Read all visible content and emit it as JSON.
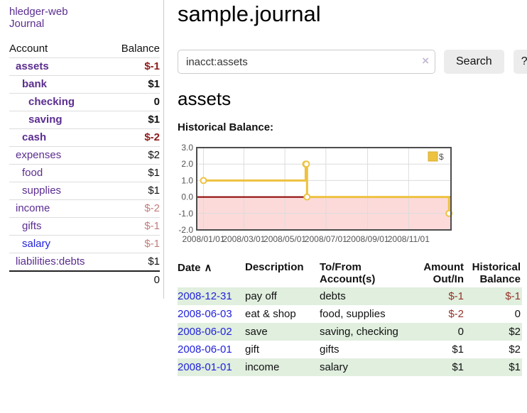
{
  "sidebar": {
    "app_title": "hledger-web",
    "journal_link": "Journal",
    "accounts_table": {
      "headers": {
        "account": "Account",
        "balance": "Balance"
      },
      "rows": [
        {
          "name": "assets",
          "depth": 1,
          "bold": true,
          "balance": "$-1",
          "neg": "strong"
        },
        {
          "name": "bank",
          "depth": 2,
          "bold": true,
          "balance": "$1",
          "neg": "none"
        },
        {
          "name": "checking",
          "depth": 3,
          "bold": true,
          "balance": "0",
          "neg": "none"
        },
        {
          "name": "saving",
          "depth": 3,
          "bold": true,
          "balance": "$1",
          "neg": "none"
        },
        {
          "name": "cash",
          "depth": 2,
          "bold": true,
          "balance": "$-2",
          "neg": "strong"
        },
        {
          "name": "expenses",
          "depth": 1,
          "bold": false,
          "balance": "$2",
          "neg": "none"
        },
        {
          "name": "food",
          "depth": 2,
          "bold": false,
          "balance": "$1",
          "neg": "none"
        },
        {
          "name": "supplies",
          "depth": 2,
          "bold": false,
          "balance": "$1",
          "neg": "none"
        },
        {
          "name": "income",
          "depth": 1,
          "bold": false,
          "balance": "$-2",
          "neg": "soft"
        },
        {
          "name": "gifts",
          "depth": 2,
          "bold": false,
          "balance": "$-1",
          "neg": "soft"
        },
        {
          "name": "salary",
          "depth": 2,
          "bold": false,
          "balance": "$-1",
          "neg": "soft",
          "blue": true
        },
        {
          "name": "liabilities:debts",
          "depth": 1,
          "bold": false,
          "balance": "$1",
          "neg": "none"
        }
      ],
      "total": "0"
    }
  },
  "main": {
    "title": "sample.journal",
    "search": {
      "value": "inacct:assets",
      "clear_icon": "×",
      "button": "Search",
      "help_button": "?"
    },
    "account_heading": "assets"
  },
  "chart_data": {
    "type": "line",
    "step": true,
    "title": "Historical Balance:",
    "series": [
      {
        "name": "$",
        "color": "#edc240",
        "points": [
          [
            "2008-01-01",
            1
          ],
          [
            "2008-06-01",
            2
          ],
          [
            "2008-06-02",
            2
          ],
          [
            "2008-06-03",
            0
          ],
          [
            "2008-12-31",
            -1
          ]
        ]
      }
    ],
    "x_ticks": [
      "2008/01/01",
      "2008/03/01",
      "2008/05/01",
      "2008/07/01",
      "2008/09/01",
      "2008/11/01"
    ],
    "y_ticks": [
      3.0,
      2.0,
      1.0,
      0.0,
      -1.0,
      -2.0
    ],
    "ylim": [
      -2,
      3
    ],
    "x_domain": [
      "2007-12-22",
      "2009-01-03"
    ],
    "grid": true,
    "zero_line_color": "#8b0000",
    "negative_region_color": "#fcdada",
    "gridline_color": "#dcdcdc",
    "border_color": "#4d4d4d",
    "legend": {
      "label": "$",
      "position": "top-right"
    }
  },
  "register": {
    "headers": {
      "date": "Date",
      "sort_icon": "∧",
      "description": "Description",
      "accounts": "To/From Account(s)",
      "amount": "Amount Out/In",
      "balance": "Historical Balance"
    },
    "rows": [
      {
        "date": "2008-12-31",
        "description": "pay off",
        "accounts": "debts",
        "amount": "$-1",
        "amount_neg": true,
        "balance": "$-1",
        "balance_neg": true
      },
      {
        "date": "2008-06-03",
        "description": "eat & shop",
        "accounts": "food, supplies",
        "amount": "$-2",
        "amount_neg": true,
        "balance": "0",
        "balance_neg": false
      },
      {
        "date": "2008-06-02",
        "description": "save",
        "accounts": "saving, checking",
        "amount": "0",
        "amount_neg": false,
        "balance": "$2",
        "balance_neg": false
      },
      {
        "date": "2008-06-01",
        "description": "gift",
        "accounts": "gifts",
        "amount": "$1",
        "amount_neg": false,
        "balance": "$2",
        "balance_neg": false
      },
      {
        "date": "2008-01-01",
        "description": "income",
        "accounts": "salary",
        "amount": "$1",
        "amount_neg": false,
        "balance": "$1",
        "balance_neg": false
      }
    ]
  }
}
